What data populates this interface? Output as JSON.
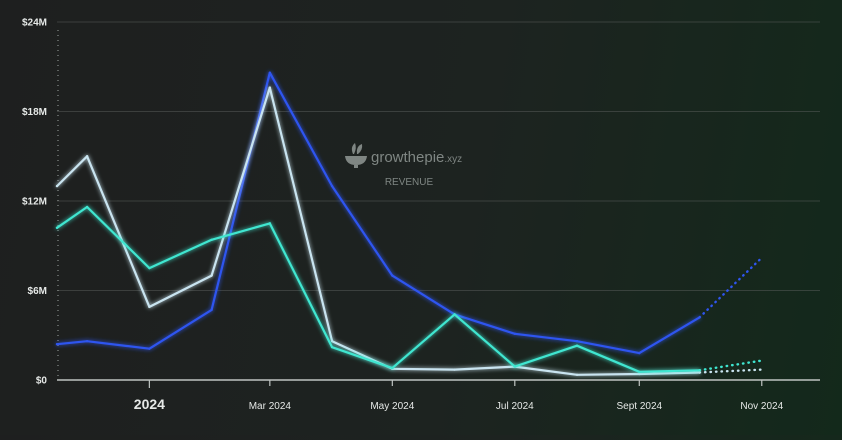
{
  "brand": {
    "name_prefix": "grow",
    "name_highlight": "thepie",
    "name_suffix": ".xyz",
    "caption": "REVENUE"
  },
  "colors": {
    "background": "#1e201f",
    "grid": "#5a5f5d",
    "axis": "#bfc4c2",
    "tick_text": "#e6e9e7",
    "watermark": "#7f8683"
  },
  "chart_data": {
    "type": "line",
    "title": "",
    "xlabel": "",
    "ylabel": "",
    "ylim": [
      0,
      24
    ],
    "y_unit": "$M",
    "yticks": [
      {
        "value": 0,
        "label": "$0"
      },
      {
        "value": 6,
        "label": "$6M"
      },
      {
        "value": 12,
        "label": "$12M"
      },
      {
        "value": 18,
        "label": "$18M"
      },
      {
        "value": 24,
        "label": "$24M"
      }
    ],
    "x_range": [
      "2023-11-16",
      "2024-11-30"
    ],
    "xticks": [
      {
        "date": "2024-01-01",
        "label": "2024",
        "year": true
      },
      {
        "date": "2024-03-01",
        "label": "Mar 2024",
        "year": false
      },
      {
        "date": "2024-05-01",
        "label": "May 2024",
        "year": false
      },
      {
        "date": "2024-07-01",
        "label": "Jul 2024",
        "year": false
      },
      {
        "date": "2024-09-01",
        "label": "Sept 2024",
        "year": false
      },
      {
        "date": "2024-11-01",
        "label": "Nov 2024",
        "year": false
      }
    ],
    "grid": true,
    "legend": "none",
    "series": [
      {
        "color": "#2f55f0",
        "points": [
          {
            "x": "2023-11-16",
            "y": 2.4
          },
          {
            "x": "2023-12-01",
            "y": 2.6
          },
          {
            "x": "2024-01-01",
            "y": 2.1
          },
          {
            "x": "2024-02-01",
            "y": 4.7
          },
          {
            "x": "2024-03-01",
            "y": 20.6
          },
          {
            "x": "2024-04-01",
            "y": 13.0
          },
          {
            "x": "2024-05-01",
            "y": 7.0
          },
          {
            "x": "2024-06-01",
            "y": 4.4
          },
          {
            "x": "2024-07-01",
            "y": 3.1
          },
          {
            "x": "2024-08-01",
            "y": 2.6
          },
          {
            "x": "2024-09-01",
            "y": 1.8
          },
          {
            "x": "2024-10-01",
            "y": 4.2
          }
        ],
        "projection": [
          {
            "x": "2024-10-01",
            "y": 4.2
          },
          {
            "x": "2024-11-01",
            "y": 8.2
          }
        ]
      },
      {
        "color": "#c9e4f0",
        "points": [
          {
            "x": "2023-11-16",
            "y": 13.0
          },
          {
            "x": "2023-12-01",
            "y": 15.0
          },
          {
            "x": "2024-01-01",
            "y": 4.9
          },
          {
            "x": "2024-02-01",
            "y": 7.0
          },
          {
            "x": "2024-03-01",
            "y": 19.6
          },
          {
            "x": "2024-04-01",
            "y": 2.6
          },
          {
            "x": "2024-05-01",
            "y": 0.75
          },
          {
            "x": "2024-06-01",
            "y": 0.7
          },
          {
            "x": "2024-07-01",
            "y": 0.9
          },
          {
            "x": "2024-08-01",
            "y": 0.35
          },
          {
            "x": "2024-09-01",
            "y": 0.4
          },
          {
            "x": "2024-10-01",
            "y": 0.5
          }
        ],
        "projection": [
          {
            "x": "2024-10-01",
            "y": 0.5
          },
          {
            "x": "2024-11-01",
            "y": 0.7
          }
        ]
      },
      {
        "color": "#3fe6d0",
        "points": [
          {
            "x": "2023-11-16",
            "y": 10.2
          },
          {
            "x": "2023-12-01",
            "y": 11.6
          },
          {
            "x": "2024-01-01",
            "y": 7.5
          },
          {
            "x": "2024-02-01",
            "y": 9.4
          },
          {
            "x": "2024-03-01",
            "y": 10.5
          },
          {
            "x": "2024-04-01",
            "y": 2.2
          },
          {
            "x": "2024-05-01",
            "y": 0.8
          },
          {
            "x": "2024-06-01",
            "y": 4.4
          },
          {
            "x": "2024-07-01",
            "y": 0.9
          },
          {
            "x": "2024-08-01",
            "y": 2.3
          },
          {
            "x": "2024-09-01",
            "y": 0.55
          },
          {
            "x": "2024-10-01",
            "y": 0.65
          }
        ],
        "projection": [
          {
            "x": "2024-10-01",
            "y": 0.65
          },
          {
            "x": "2024-11-01",
            "y": 1.3
          }
        ]
      }
    ]
  }
}
